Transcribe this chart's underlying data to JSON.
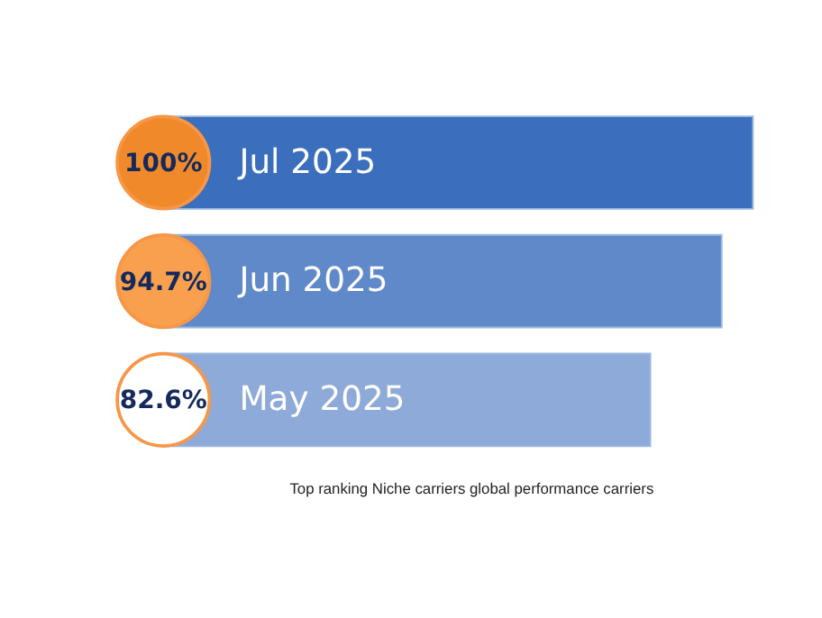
{
  "chart_data": {
    "type": "bar",
    "orientation": "horizontal",
    "categories": [
      "Jul 2025",
      "Jun 2025",
      "May 2025"
    ],
    "values": [
      100,
      94.7,
      82.6
    ],
    "value_labels": [
      "100%",
      "94.7%",
      "82.6%"
    ],
    "colors": [
      "#3b6fbd",
      "#5f89c9",
      "#8eaad8"
    ],
    "tick_labels": false,
    "annotations": [
      "Top ranking Niche carriers global performance carriers"
    ]
  }
}
